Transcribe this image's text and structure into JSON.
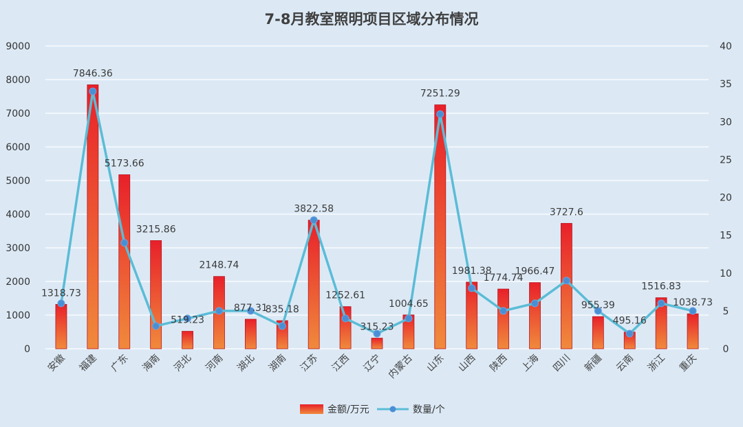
{
  "chart_data": {
    "type": "bar",
    "title": "7-8月教室照明项目区域分布情况",
    "categories": [
      "安徽",
      "福建",
      "广东",
      "海南",
      "河北",
      "河南",
      "湖北",
      "湖南",
      "江苏",
      "江西",
      "辽宁",
      "内蒙古",
      "山东",
      "山西",
      "陕西",
      "上海",
      "四川",
      "新疆",
      "云南",
      "浙江",
      "重庆"
    ],
    "series": [
      {
        "name": "金额/万元",
        "type": "bar",
        "axis": "left",
        "values": [
          1318.73,
          7846.36,
          5173.66,
          3215.86,
          519.23,
          2148.74,
          877.31,
          835.18,
          3822.58,
          1252.61,
          315.23,
          1004.65,
          7251.29,
          1981.38,
          1774.74,
          1966.47,
          3727.6,
          955.39,
          495.16,
          1516.83,
          1038.73
        ],
        "labels": [
          "1318.73",
          "7846.36",
          "5173.66",
          "3215.86",
          "519.23",
          "2148.74",
          "877.31",
          "835.18",
          "3822.58",
          "1252.61",
          "315.23",
          "1004.65",
          "7251.29",
          "1981.38",
          "1774.74",
          "1966.47",
          "3727.6",
          "955.39",
          "495.16",
          "1516.83",
          "1038.73"
        ],
        "color_top": "#e8202a",
        "color_bottom": "#f08a3c"
      },
      {
        "name": "数量/个",
        "type": "line",
        "axis": "right",
        "values": [
          6,
          34,
          14,
          3,
          4,
          5,
          5,
          3,
          17,
          4,
          2,
          4,
          31,
          8,
          5,
          6,
          9,
          5,
          2,
          6,
          5
        ],
        "color": "#5bbcd6",
        "marker_color": "#4a8fd4"
      }
    ],
    "y_left": {
      "min": 0,
      "max": 9000,
      "step": 1000,
      "ticks": [
        "0",
        "1000",
        "2000",
        "3000",
        "4000",
        "5000",
        "6000",
        "7000",
        "8000",
        "9000"
      ]
    },
    "y_right": {
      "min": 0,
      "max": 40,
      "step": 5,
      "ticks": [
        "0",
        "5",
        "10",
        "15",
        "20",
        "25",
        "30",
        "35",
        "40"
      ]
    },
    "legend_position": "bottom",
    "grid": true
  }
}
